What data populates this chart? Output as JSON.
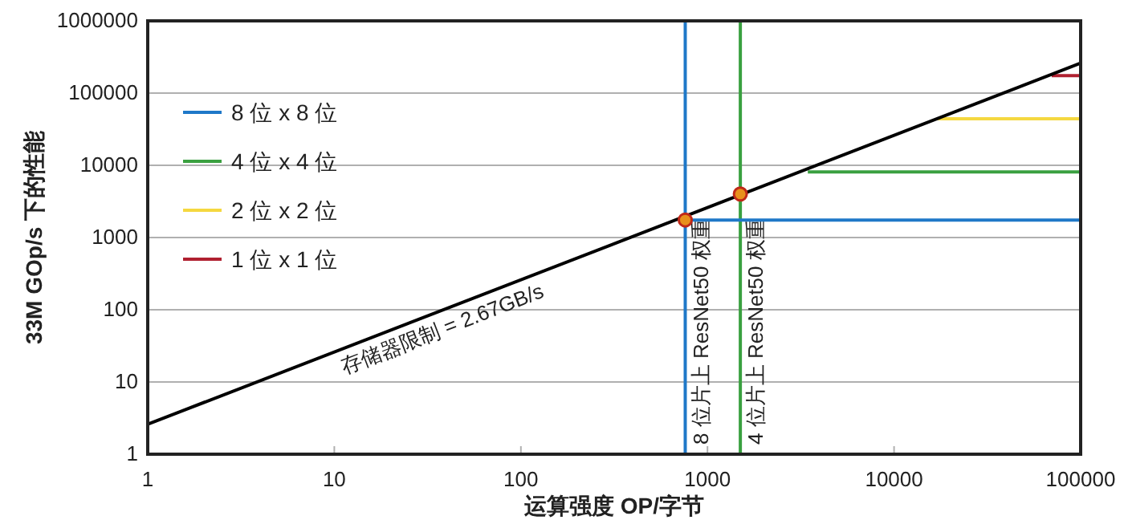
{
  "chart_data": {
    "type": "line",
    "xlabel": "运算强度 OP/字节",
    "ylabel": "33M GOp/s 下的性能",
    "log": "xy",
    "xlim": [
      1,
      100000
    ],
    "ylim": [
      1,
      1000000
    ],
    "xticks": [
      1,
      10,
      100,
      1000,
      10000,
      100000
    ],
    "yticks": [
      1,
      10,
      100,
      1000,
      10000,
      100000,
      1000000
    ],
    "grid": "y",
    "legend": "top left",
    "series": [
      {
        "name": "8 位 x 8 位",
        "color": "#1f78c8",
        "x": [
          760,
          100000
        ],
        "values": [
          1750,
          1750
        ]
      },
      {
        "name": "4 位 x 4 位",
        "color": "#3aa040",
        "x": [
          3450,
          100000
        ],
        "values": [
          8100,
          8100
        ]
      },
      {
        "name": "2 位 x 2 位",
        "color": "#f5d840",
        "x": [
          17000,
          100000
        ],
        "values": [
          44000,
          44000
        ]
      },
      {
        "name": "1 位 x 1 位",
        "color": "#b02030",
        "x": [
          70000,
          100000
        ],
        "values": [
          175000,
          175000
        ]
      },
      {
        "color": "#000000",
        "x": [
          1,
          100000
        ],
        "values": [
          2.6,
          260000
        ]
      },
      {
        "type": "scatter",
        "marker": "circle",
        "color": "#e8901c",
        "x": [
          760,
          1500
        ],
        "values": [
          1750,
          4000
        ]
      }
    ],
    "ref_lines": [
      {
        "axis": "x",
        "value": 760,
        "label": "8 位片上 ResNet50 权重",
        "color": "#1f78c8"
      },
      {
        "axis": "x",
        "value": 1500,
        "label": "4 位片上 ResNet50 权重",
        "color": "#3aa040"
      }
    ],
    "annotations": [
      "存储器限制 = 2.67GB/s"
    ]
  }
}
